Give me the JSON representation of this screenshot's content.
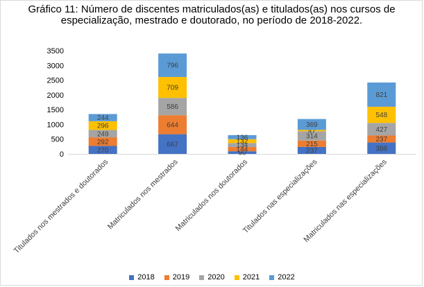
{
  "chart_data": {
    "type": "bar",
    "stacked": true,
    "title": "Gráfico 11: Número de discentes matriculados(as) e titulados(as) nos cursos de especialização, mestrado e doutorado, no período de 2018-2022.",
    "categories": [
      "Titulados nos mestrados e doutorados",
      "Matriculados nos mestrados",
      "Matriculados nos doutorados",
      "Titulados nas especializações",
      "Matriculados nas especializações"
    ],
    "series": [
      {
        "name": "2018",
        "color": "#4472C4",
        "values": [
          270,
          667,
          90,
          237,
          386
        ],
        "labels": [
          "270",
          "667",
          "90",
          "237",
          "386"
        ]
      },
      {
        "name": "2019",
        "color": "#ED7D31",
        "values": [
          292,
          644,
          144,
          215,
          237
        ],
        "labels": [
          "292",
          "644",
          "144",
          "215",
          "237"
        ]
      },
      {
        "name": "2020",
        "color": "#A5A5A5",
        "values": [
          249,
          586,
          134,
          314,
          427
        ],
        "labels": [
          "249",
          "586",
          "134",
          "314",
          "427"
        ]
      },
      {
        "name": "2021",
        "color": "#FFC000",
        "values": [
          296,
          709,
          132,
          47,
          548
        ],
        "labels": [
          "296",
          "709",
          "132",
          "47",
          "548"
        ]
      },
      {
        "name": "2022",
        "color": "#5B9BD5",
        "values": [
          244,
          796,
          136,
          369,
          821
        ],
        "labels": [
          "244",
          "796",
          "136",
          "369",
          "821"
        ]
      }
    ],
    "yticks": [
      "0",
      "500",
      "1000",
      "1500",
      "2000",
      "2500",
      "3000",
      "3500"
    ],
    "ylim": [
      0,
      3500
    ],
    "legend_position": "bottom",
    "grid": false
  }
}
